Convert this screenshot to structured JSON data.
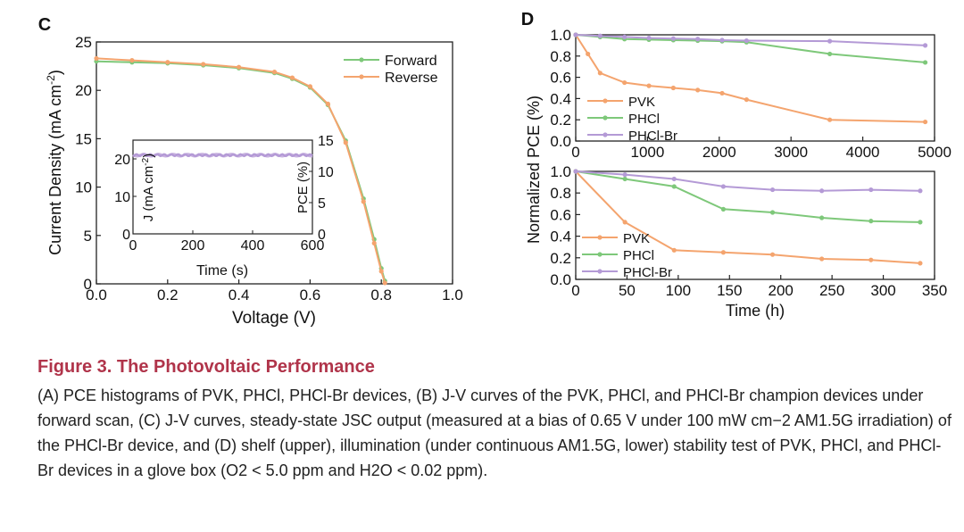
{
  "chart_data": [
    {
      "panel": "C",
      "type": "line",
      "xlabel": "Voltage (V)",
      "ylabel": "Current Density (mA cm^-2)",
      "xlim": [
        0.0,
        1.0
      ],
      "ylim": [
        0,
        25
      ],
      "xticks": [
        "0.0",
        "0.2",
        "0.4",
        "0.6",
        "0.8",
        "1.0"
      ],
      "yticks": [
        "0",
        "5",
        "10",
        "15",
        "20",
        "25"
      ],
      "legend_position": "top-right",
      "series": [
        {
          "name": "Forward",
          "color": "#7ec87a",
          "x": [
            0.0,
            0.1,
            0.2,
            0.3,
            0.4,
            0.5,
            0.55,
            0.6,
            0.65,
            0.7,
            0.75,
            0.78,
            0.8,
            0.81
          ],
          "y": [
            23.0,
            22.9,
            22.8,
            22.6,
            22.3,
            21.8,
            21.2,
            20.3,
            18.5,
            14.8,
            8.8,
            4.6,
            1.6,
            0.3
          ]
        },
        {
          "name": "Reverse",
          "color": "#f4a46e",
          "x": [
            0.0,
            0.1,
            0.2,
            0.3,
            0.4,
            0.5,
            0.55,
            0.6,
            0.65,
            0.7,
            0.75,
            0.78,
            0.8,
            0.81
          ],
          "y": [
            23.3,
            23.1,
            22.9,
            22.7,
            22.4,
            21.9,
            21.3,
            20.4,
            18.6,
            14.6,
            8.5,
            4.2,
            1.3,
            0.1
          ]
        }
      ],
      "inset": {
        "xlabel": "Time (s)",
        "ylabel_left": "J (mA cm^-2)",
        "ylabel_right": "PCE (%)",
        "xlim": [
          0,
          600
        ],
        "ylim_left": [
          0,
          25
        ],
        "ylim_right": [
          0,
          15
        ],
        "xticks": [
          "0",
          "200",
          "400",
          "600"
        ],
        "yticks_left": [
          "0",
          "10",
          "20"
        ],
        "yticks_right": [
          "0",
          "5",
          "10",
          "15"
        ],
        "series": [
          {
            "name": "J",
            "color": "#c9b3e0",
            "value": 21.0
          },
          {
            "name": "PCE",
            "color": "#b49ad6",
            "value": 12.6
          }
        ]
      }
    },
    {
      "panel": "D-upper",
      "type": "line",
      "xlabel": "",
      "xlim": [
        0,
        5000
      ],
      "ylim": [
        0.0,
        1.0
      ],
      "xticks": [
        "0",
        "1000",
        "2000",
        "3000",
        "4000",
        "5000"
      ],
      "yticks": [
        "0.0",
        "0.2",
        "0.4",
        "0.6",
        "0.8",
        "1.0"
      ],
      "legend_position": "bottom-left",
      "series": [
        {
          "name": "PVK",
          "color": "#f4a46e",
          "x": [
            0,
            170,
            340,
            680,
            1020,
            1360,
            1700,
            2040,
            2380,
            3540,
            4870
          ],
          "y": [
            1.0,
            0.82,
            0.64,
            0.55,
            0.52,
            0.5,
            0.48,
            0.45,
            0.39,
            0.2,
            0.18
          ]
        },
        {
          "name": "PHCl",
          "color": "#7ec87a",
          "x": [
            0,
            340,
            680,
            1020,
            1360,
            1700,
            2040,
            2380,
            3540,
            4870
          ],
          "y": [
            1.0,
            0.98,
            0.96,
            0.955,
            0.95,
            0.945,
            0.94,
            0.93,
            0.82,
            0.74
          ]
        },
        {
          "name": "PHCl-Br",
          "color": "#b49ad6",
          "x": [
            0,
            340,
            680,
            1020,
            1360,
            1700,
            2040,
            2380,
            3540,
            4870
          ],
          "y": [
            1.0,
            0.99,
            0.98,
            0.97,
            0.965,
            0.96,
            0.95,
            0.945,
            0.94,
            0.9
          ]
        }
      ]
    },
    {
      "panel": "D-lower",
      "type": "line",
      "xlabel": "Time (h)",
      "xlim": [
        0,
        350
      ],
      "ylim": [
        0.0,
        1.0
      ],
      "xticks": [
        "0",
        "50",
        "100",
        "150",
        "200",
        "250",
        "300",
        "350"
      ],
      "yticks": [
        "0.0",
        "0.2",
        "0.4",
        "0.6",
        "0.8",
        "1.0"
      ],
      "legend_position": "bottom-left",
      "series": [
        {
          "name": "PVK",
          "color": "#f4a46e",
          "x": [
            0,
            48,
            96,
            144,
            192,
            240,
            288,
            336
          ],
          "y": [
            1.0,
            0.53,
            0.27,
            0.25,
            0.23,
            0.19,
            0.18,
            0.15
          ]
        },
        {
          "name": "PHCl",
          "color": "#7ec87a",
          "x": [
            0,
            48,
            96,
            144,
            192,
            240,
            288,
            336
          ],
          "y": [
            1.0,
            0.93,
            0.86,
            0.65,
            0.62,
            0.57,
            0.54,
            0.53
          ]
        },
        {
          "name": "PHCl-Br",
          "color": "#b49ad6",
          "x": [
            0,
            48,
            96,
            144,
            192,
            240,
            288,
            336
          ],
          "y": [
            1.0,
            0.97,
            0.93,
            0.86,
            0.83,
            0.82,
            0.83,
            0.82
          ]
        }
      ]
    }
  ],
  "panel_labels": {
    "c": "C",
    "d": "D"
  },
  "shared_ylabel_d": "Normalized PCE (%)",
  "caption": {
    "title": "Figure 3.  The Photovoltaic Performance",
    "body": "(A) PCE histograms of PVK, PHCl, PHCl-Br devices, (B) J-V curves of the PVK, PHCl, and PHCl-Br champion devices under forward scan, (C) J-V curves, steady-state JSC output (measured at a bias of 0.65 V under 100 mW cm−2 AM1.5G irradiation) of the PHCl-Br device, and (D) shelf (upper), illumination (under continuous AM1.5G, lower) stability test of PVK, PHCl, and PHCl-Br devices in a glove box (O2 < 5.0 ppm and H2O < 0.02 ppm)."
  }
}
